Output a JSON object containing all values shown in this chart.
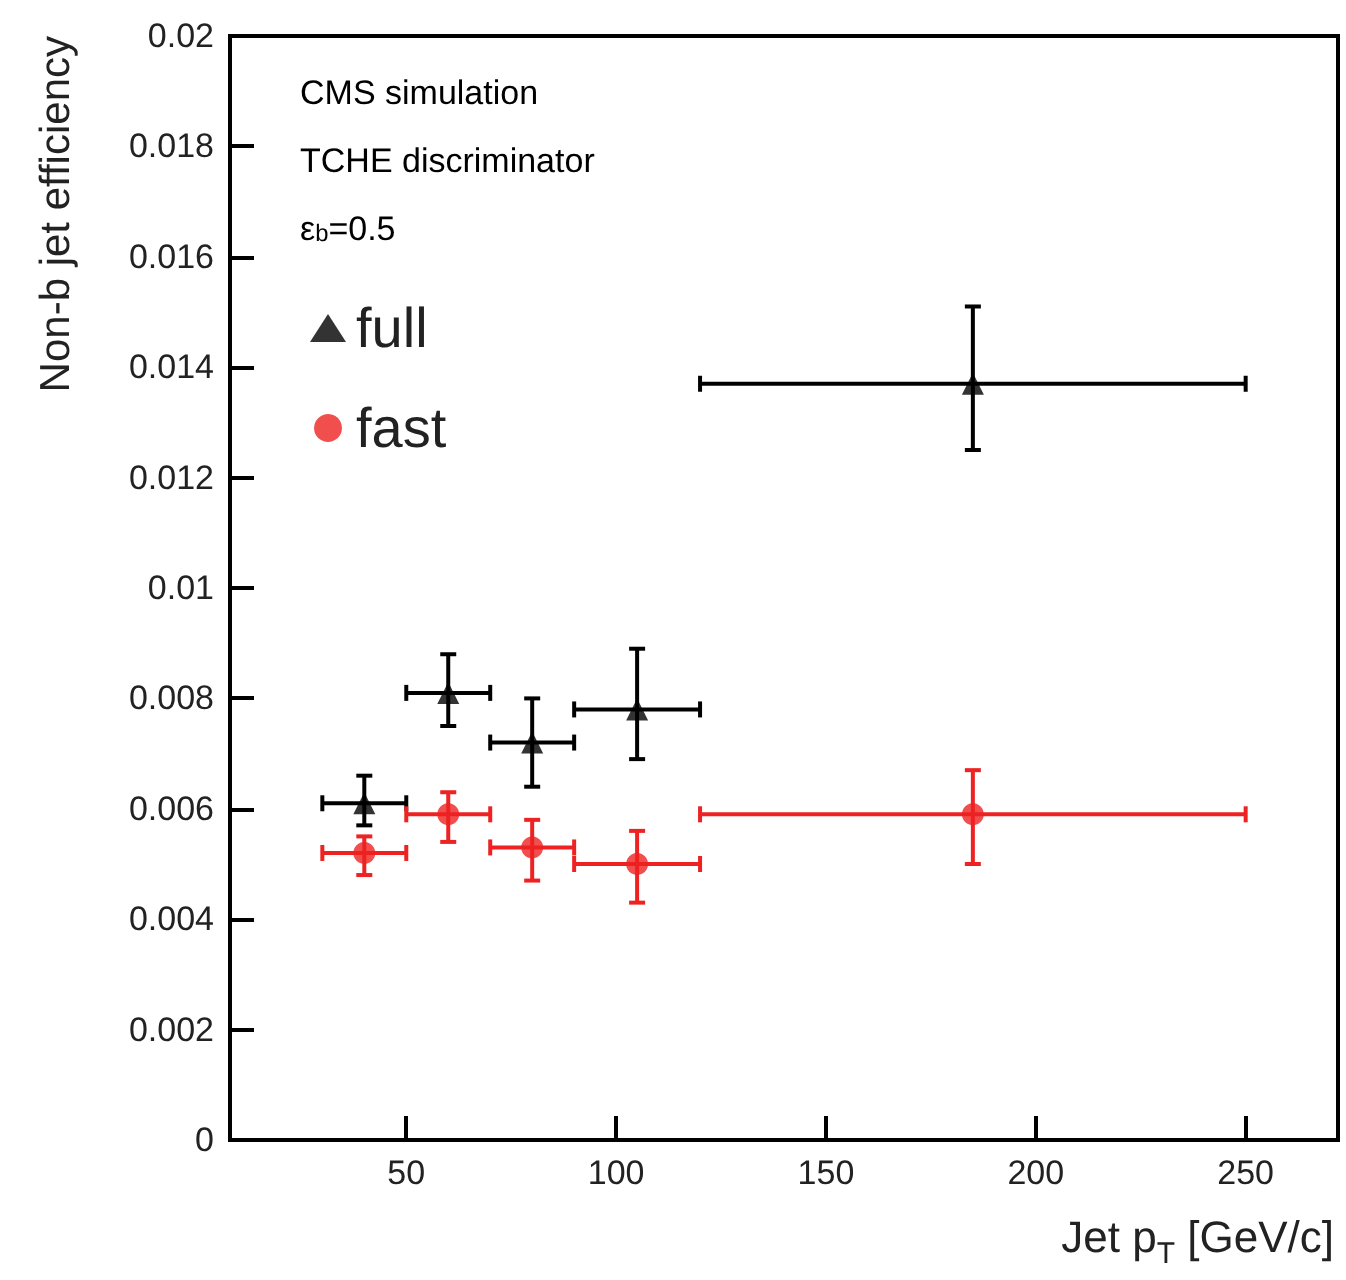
{
  "chart_data": {
    "type": "scatter",
    "xlabel": "Jet p$_{T}$ [GeV/c]",
    "ylabel": "Non-b jet efficiency",
    "annotations": [
      "CMS simulation",
      "TCHE discriminator",
      "ε$_{b}$=0.5"
    ],
    "xlim": [
      8,
      272
    ],
    "xticks": [
      50,
      100,
      150,
      200,
      250
    ],
    "ylim": [
      0,
      0.02
    ],
    "yticks": [
      0,
      0.002,
      0.004,
      0.006,
      0.008,
      0.01,
      0.012,
      0.014,
      0.016,
      0.018,
      0.02
    ],
    "grid": false,
    "legend": "top left",
    "series": [
      {
        "name": "full",
        "color": "#000000",
        "marker": "triangle",
        "x": [
          40,
          60,
          80,
          105,
          185
        ],
        "values": [
          0.0061,
          0.0081,
          0.0072,
          0.0078,
          0.0137
        ],
        "errors": [
          [
            0.0057,
            0.0066
          ],
          [
            0.0075,
            0.0088
          ],
          [
            0.0064,
            0.008
          ],
          [
            0.0069,
            0.0089
          ],
          [
            0.0125,
            0.0151
          ]
        ],
        "xerrors": [
          [
            30,
            50
          ],
          [
            50,
            70
          ],
          [
            70,
            90
          ],
          [
            90,
            120
          ],
          [
            120,
            250
          ]
        ]
      },
      {
        "name": "fast",
        "color": "#ee2222",
        "marker": "circle",
        "x": [
          40,
          60,
          80,
          105,
          185
        ],
        "values": [
          0.0052,
          0.0059,
          0.0053,
          0.005,
          0.0059
        ],
        "errors": [
          [
            0.0048,
            0.0055
          ],
          [
            0.0054,
            0.0063
          ],
          [
            0.0047,
            0.0058
          ],
          [
            0.0043,
            0.0056
          ],
          [
            0.005,
            0.0067
          ]
        ],
        "xerrors": [
          [
            30,
            50
          ],
          [
            50,
            70
          ],
          [
            70,
            90
          ],
          [
            90,
            120
          ],
          [
            120,
            250
          ]
        ]
      }
    ]
  }
}
